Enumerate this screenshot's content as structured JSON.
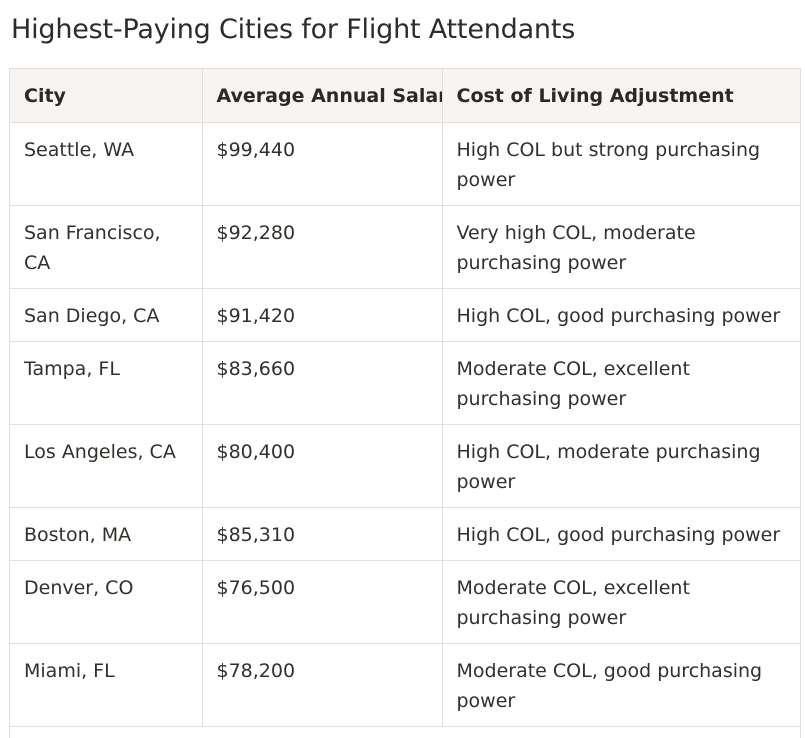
{
  "title": "Highest-Paying Cities for Flight Attendants",
  "table": {
    "columns": [
      "City",
      "Average Annual Salary",
      "Cost of Living Adjustment"
    ],
    "rows": [
      {
        "city": "Seattle, WA",
        "salary": "$99,440",
        "col": "High COL but strong purchasing power"
      },
      {
        "city": "San Francisco, CA",
        "salary": "$92,280",
        "col": "Very high COL, moderate purchasing power"
      },
      {
        "city": "San Diego, CA",
        "salary": "$91,420",
        "col": "High COL, good purchasing power"
      },
      {
        "city": "Tampa, FL",
        "salary": "$83,660",
        "col": "Moderate COL, excellent purchasing power"
      },
      {
        "city": "Los Angeles, CA",
        "salary": "$80,400",
        "col": "High COL, moderate purchasing power"
      },
      {
        "city": "Boston, MA",
        "salary": "$85,310",
        "col": "High COL, good purchasing power"
      },
      {
        "city": "Denver, CO",
        "salary": "$76,500",
        "col": "Moderate COL, excellent purchasing power"
      },
      {
        "city": "Miami, FL",
        "salary": "$78,200",
        "col": "Moderate COL, good purchasing power"
      }
    ]
  }
}
